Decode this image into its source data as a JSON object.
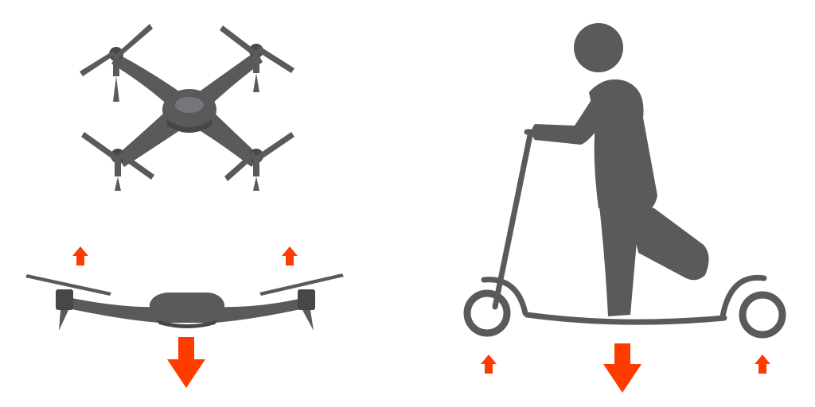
{
  "colors": {
    "body": "#5a5a5d",
    "body_dark": "#47474a",
    "body_light": "#76767a",
    "arrow": "#ff3c00"
  },
  "icons": {
    "drone_top": "drone-top-view-icon",
    "drone_side": "drone-side-view-icon",
    "scooter_rider": "scooter-rider-icon",
    "arrow_up": "arrow-up-icon",
    "arrow_down": "arrow-down-icon"
  }
}
